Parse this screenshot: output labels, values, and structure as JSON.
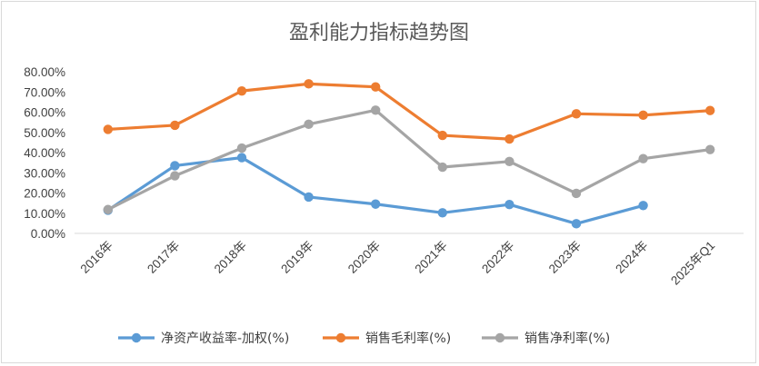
{
  "chart_data": {
    "type": "line",
    "title": "盈利能力指标趋势图",
    "categories": [
      "2016年",
      "2017年",
      "2018年",
      "2019年",
      "2020年",
      "2021年",
      "2022年",
      "2023年",
      "2024年",
      "2025年Q1"
    ],
    "ylim": [
      0,
      80
    ],
    "yticks": [
      "0.00%",
      "10.00%",
      "20.00%",
      "30.00%",
      "40.00%",
      "50.00%",
      "60.00%",
      "70.00%",
      "80.00%"
    ],
    "grid": false,
    "legend_position": "bottom",
    "series": [
      {
        "name": "净资产收益率-加权(%)",
        "color": "#5b9bd5",
        "values": [
          11.5,
          33.5,
          37.5,
          18,
          14.5,
          10.2,
          14.3,
          4.8,
          13.8,
          null
        ]
      },
      {
        "name": "销售毛利率(%)",
        "color": "#ed7d31",
        "values": [
          51.5,
          53.5,
          70.5,
          74,
          72.5,
          48.5,
          46.7,
          59.2,
          58.5,
          60.8
        ]
      },
      {
        "name": "销售净利率(%)",
        "color": "#a5a5a5",
        "values": [
          11.8,
          28.5,
          42.2,
          54,
          61,
          32.8,
          35.6,
          19.8,
          37,
          41.5
        ]
      }
    ]
  }
}
